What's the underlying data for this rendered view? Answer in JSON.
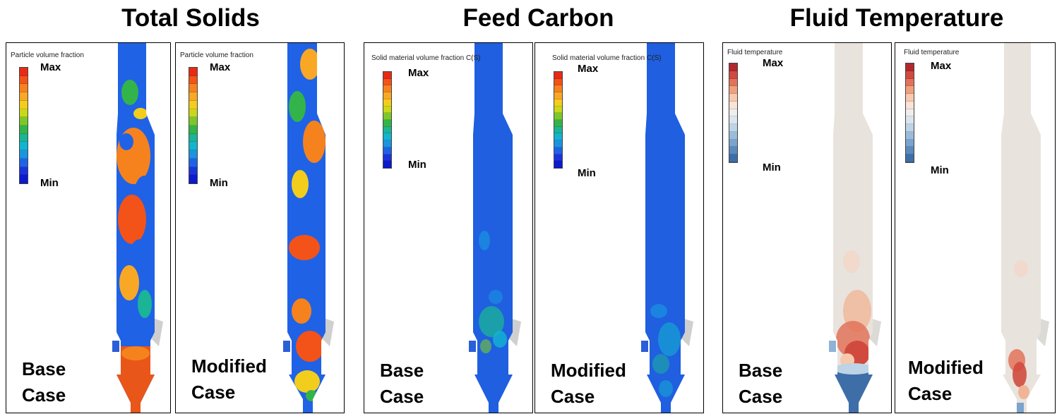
{
  "groups": [
    {
      "title": "Total Solids",
      "cb_title": "Particle volume fraction",
      "cb_colors": [
        "#e82a15",
        "#f35318",
        "#f6821e",
        "#f9a825",
        "#f3cd1c",
        "#c8d81a",
        "#7cc82a",
        "#33b44a",
        "#1bb497",
        "#13b4cf",
        "#1a93e0",
        "#1f62e6",
        "#1c33dc",
        "#0d1acf"
      ],
      "panels": [
        {
          "line1": "Base",
          "line2": "Case",
          "max": "Max",
          "min": "Min"
        },
        {
          "line1": "Modified",
          "line2": "Case",
          "max": "Max",
          "min": "Min"
        }
      ]
    },
    {
      "title": "Feed Carbon",
      "cb_title": "Solid material volume fraction C(S)",
      "cb_colors": [
        "#e82a15",
        "#f35318",
        "#f6821e",
        "#f9a825",
        "#f3cd1c",
        "#c8d81a",
        "#7cc82a",
        "#33b44a",
        "#1bb497",
        "#13b4cf",
        "#1a93e0",
        "#1f62e6",
        "#1c33dc",
        "#0d1acf"
      ],
      "panels": [
        {
          "line1": "Base",
          "line2": "Case",
          "max": "Max",
          "min": "Min"
        },
        {
          "line1": "Modified",
          "line2": "Case",
          "max": "Max",
          "min": "Min"
        }
      ]
    },
    {
      "title": "Fluid Temperature",
      "cb_title": "Fluid temperature",
      "cb_colors": [
        "#b2282e",
        "#d04b3e",
        "#e2735a",
        "#f0a07f",
        "#f7c9ae",
        "#f8e3d6",
        "#eeeeee",
        "#dbe5ee",
        "#bdd3e6",
        "#99bcdb",
        "#7aa3cd",
        "#5a89bd",
        "#3d6ea8"
      ],
      "panels": [
        {
          "line1": "Base",
          "line2": "Case",
          "max": "Max",
          "min": "Min"
        },
        {
          "line1": "Modified",
          "line2": "Case",
          "max": "Max",
          "min": "Min"
        }
      ]
    }
  ]
}
